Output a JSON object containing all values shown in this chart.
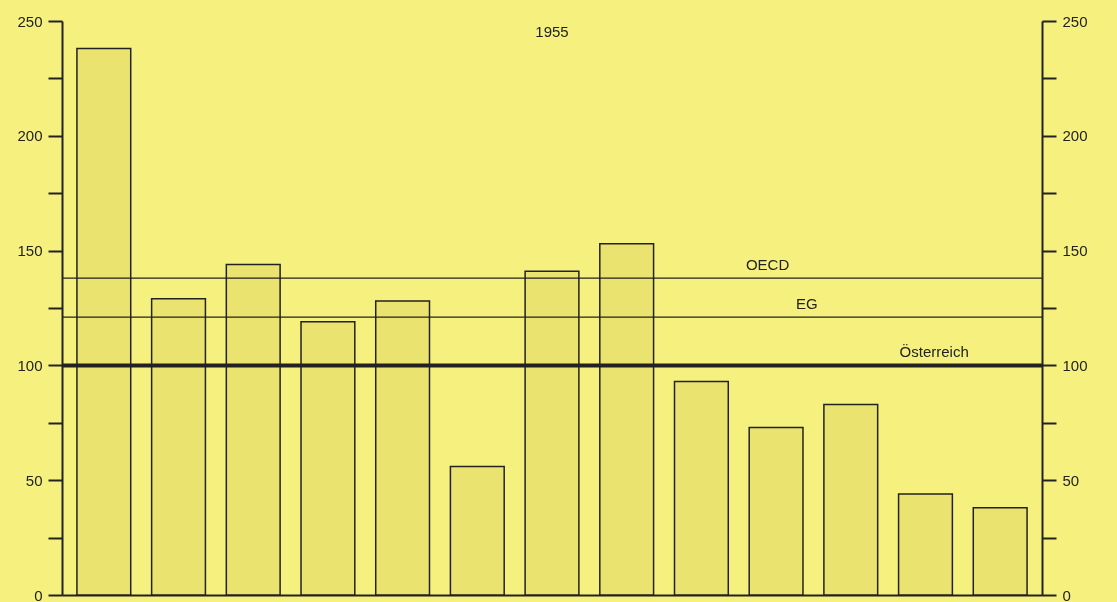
{
  "chart_data": {
    "type": "bar",
    "title": "1955",
    "categories": [
      null,
      null,
      null,
      null,
      null,
      null,
      null,
      null,
      null,
      null,
      null,
      null,
      null
    ],
    "values": [
      238,
      129,
      144,
      119,
      128,
      56,
      141,
      153,
      93,
      73,
      83,
      44,
      38
    ],
    "color": "#ebe36f",
    "ylim": [
      0,
      250
    ],
    "yticks": [
      0,
      {
        "value": 25,
        "label": null
      },
      50,
      {
        "value": 75,
        "label": null
      },
      100,
      {
        "value": 125,
        "label": null
      },
      150,
      {
        "value": 175,
        "label": null
      },
      200,
      {
        "value": 225,
        "label": null
      },
      250
    ],
    "y2lim": [
      0,
      250
    ],
    "y2ticks": [
      0,
      {
        "value": 25,
        "label": null
      },
      50,
      {
        "value": 75,
        "label": null
      },
      100,
      {
        "value": 125,
        "label": null
      },
      150,
      {
        "value": 175,
        "label": null
      },
      200,
      {
        "value": 225,
        "label": null
      },
      250
    ],
    "ref_lines": [
      {
        "axis": "y",
        "value": 138,
        "label": "OECD"
      },
      {
        "axis": "y",
        "value": 121,
        "label": "EG"
      },
      {
        "axis": "y",
        "value": 100,
        "label": "Österreich"
      }
    ],
    "grid": false
  }
}
